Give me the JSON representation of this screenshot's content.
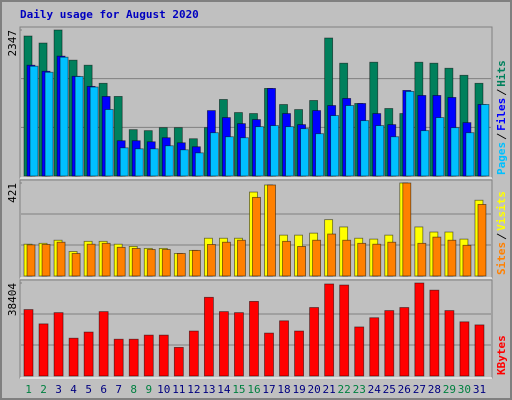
{
  "title": "Daily usage for August 2020",
  "chart_data": [
    {
      "type": "bar",
      "ylim": [
        0,
        2347
      ],
      "yticks": [
        2347
      ],
      "series": [
        {
          "name": "Hits",
          "color": "#00805c",
          "values": [
            2250,
            2137,
            2347,
            1862,
            1781,
            1490,
            1279,
            745,
            729,
            777,
            777,
            599,
            777,
            1230,
            1020,
            1004,
            1408,
            1149,
            1068,
            1214,
            2218,
            1813,
            1166,
            1829,
            1085,
            1004,
            1829,
            1813,
            1732,
            1619,
            1490
          ]
        },
        {
          "name": "Files",
          "color": "#0000ff",
          "values": [
            1781,
            1684,
            1927,
            1603,
            1441,
            1279,
            567,
            567,
            550,
            615,
            534,
            470,
            1052,
            939,
            842,
            907,
            1408,
            1004,
            826,
            1052,
            1133,
            1247,
            1166,
            1004,
            826,
            1376,
            1295,
            1295,
            1263,
            858,
            1150
          ]
        },
        {
          "name": "Pages",
          "color": "#00c0ff",
          "values": [
            1765,
            1668,
            1910,
            1600,
            1430,
            1069,
            453,
            437,
            437,
            486,
            421,
            372,
            696,
            631,
            615,
            793,
            810,
            793,
            761,
            680,
            971,
            1133,
            890,
            810,
            631,
            1360,
            729,
            939,
            777,
            696,
            1150
          ]
        }
      ]
    },
    {
      "type": "bar",
      "ylim": [
        0,
        421
      ],
      "yticks": [
        421
      ],
      "series": [
        {
          "name": "Visits",
          "color": "#ffff00",
          "values": [
            144,
            148,
            162,
            111,
            157,
            157,
            144,
            134,
            125,
            125,
            102,
            116,
            171,
            171,
            171,
            380,
            412,
            185,
            185,
            194,
            255,
            222,
            171,
            167,
            185,
            421,
            222,
            199,
            199,
            167,
            343
          ]
        },
        {
          "name": "Sites",
          "color": "#ff8000",
          "values": [
            141,
            143,
            153,
            102,
            144,
            148,
            130,
            125,
            120,
            120,
            102,
            116,
            143,
            153,
            162,
            356,
            412,
            157,
            134,
            162,
            190,
            162,
            148,
            144,
            153,
            421,
            148,
            176,
            162,
            139,
            324
          ]
        }
      ]
    },
    {
      "type": "bar",
      "ylim": [
        0,
        38404
      ],
      "yticks": [
        38404
      ],
      "categories": [
        "1",
        "2",
        "3",
        "4",
        "5",
        "6",
        "7",
        "8",
        "9",
        "10",
        "11",
        "12",
        "13",
        "14",
        "15",
        "16",
        "17",
        "18",
        "19",
        "20",
        "21",
        "22",
        "23",
        "24",
        "25",
        "26",
        "27",
        "28",
        "29",
        "30",
        "31"
      ],
      "category_colors": [
        "#008040",
        "#008040",
        "#000080",
        "#000080",
        "#000080",
        "#000080",
        "#000080",
        "#008040",
        "#008040",
        "#000080",
        "#000080",
        "#000080",
        "#000080",
        "#000080",
        "#008040",
        "#008040",
        "#000080",
        "#000080",
        "#000080",
        "#000080",
        "#000080",
        "#008040",
        "#008040",
        "#000080",
        "#000080",
        "#000080",
        "#000080",
        "#000080",
        "#008040",
        "#008040",
        "#000080"
      ],
      "series": [
        {
          "name": "KBytes",
          "color": "#ff0000",
          "values": [
            27430,
            21522,
            26164,
            15614,
            18146,
            26586,
            15192,
            15192,
            16880,
            16880,
            11816,
            18568,
            32494,
            26586,
            26164,
            30806,
            17724,
            22788,
            18568,
            28274,
            38000,
            37560,
            20256,
            24054,
            27008,
            28274,
            38404,
            35448,
            27008,
            22366,
            21100
          ]
        }
      ]
    }
  ]
}
